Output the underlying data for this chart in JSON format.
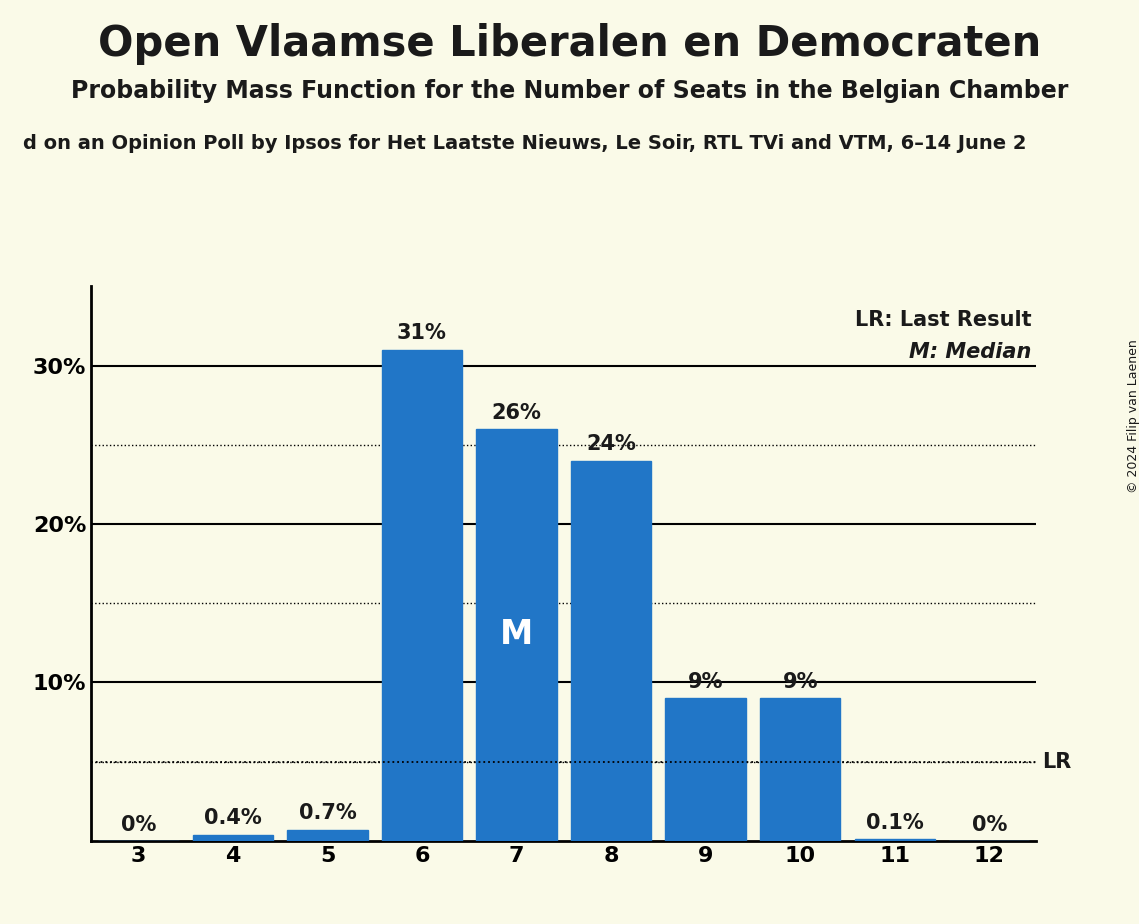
{
  "title": "Open Vlaamse Liberalen en Democraten",
  "subtitle": "Probability Mass Function for the Number of Seats in the Belgian Chamber",
  "source_line": "d on an Opinion Poll by Ipsos for Het Laatste Nieuws, Le Soir, RTL TVi and VTM, 6–14 June 2",
  "copyright": "© 2024 Filip van Laenen",
  "seats": [
    3,
    4,
    5,
    6,
    7,
    8,
    9,
    10,
    11,
    12
  ],
  "probabilities": [
    0.0,
    0.4,
    0.7,
    31.0,
    26.0,
    24.0,
    9.0,
    9.0,
    0.1,
    0.0
  ],
  "bar_color": "#2176c7",
  "background_color": "#fafae8",
  "median_seat": 7,
  "lr_value": 5.0,
  "ylim": [
    0,
    35
  ],
  "solid_gridlines": [
    10,
    20,
    30
  ],
  "dotted_gridlines": [
    5,
    15,
    25
  ],
  "lr_line": 5.0,
  "title_fontsize": 30,
  "subtitle_fontsize": 17,
  "source_fontsize": 14,
  "bar_label_fontsize": 15,
  "axis_tick_fontsize": 16,
  "legend_fontsize": 15,
  "median_label_fontsize": 24,
  "text_color": "#1a1a1a"
}
